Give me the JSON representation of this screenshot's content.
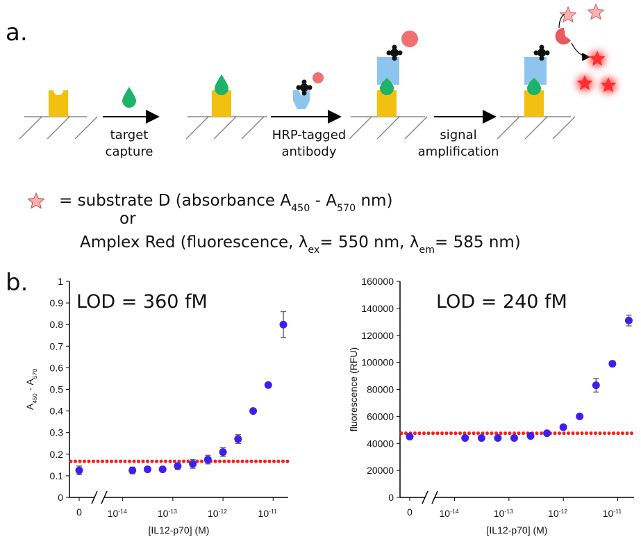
{
  "diagram": {
    "panel_a": "a.",
    "steps": [
      [
        "target",
        "capture"
      ],
      [
        "HRP-tagged",
        "antibody"
      ],
      [
        "signal",
        "amplification"
      ]
    ],
    "legend": [
      [
        "= substrate D (absorbance A",
        "450",
        " - A",
        "570",
        " nm)"
      ],
      [
        "or"
      ],
      [
        "Amplex Red  (fluorescence, λ",
        "ex",
        "= 550 nm, λ",
        "em",
        "= 585 nm)"
      ]
    ],
    "panel_b": "b."
  },
  "chart_data": [
    {
      "type": "scatter",
      "annotation": "LOD = 360 fM",
      "xlabel": "[IL12-p70] (M)",
      "ylabel": [
        "A",
        "450",
        " - A",
        "570"
      ],
      "log_x": true,
      "x": [
        0,
        1.56e-14,
        3.13e-14,
        6.25e-14,
        1.25e-13,
        2.5e-13,
        5e-13,
        1e-12,
        2e-12,
        4e-12,
        8e-12,
        1.6e-11
      ],
      "series": [
        {
          "color": "#3d1ff0",
          "error_color": "#666666",
          "values": [
            0.125,
            0.125,
            0.13,
            0.13,
            0.145,
            0.155,
            0.175,
            0.21,
            0.27,
            0.4,
            0.52,
            0.8
          ],
          "errors": [
            0.02,
            0.015,
            0.01,
            0.01,
            0.015,
            0.02,
            0.02,
            0.02,
            0.02,
            0.01,
            0.005,
            0.06
          ]
        }
      ],
      "threshold": 0.167,
      "threshold_color": "#ff1a1a",
      "xlim": [
        5e-15,
        2e-11
      ],
      "xticks": [
        0,
        {
          "value": 1e-14,
          "label": [
            "10",
            "-14"
          ]
        },
        {
          "value": 1e-13,
          "label": [
            "10",
            "-13"
          ]
        },
        {
          "value": 1e-12,
          "label": [
            "10",
            "-12"
          ]
        },
        {
          "value": 1e-11,
          "label": [
            "10",
            "-11"
          ]
        }
      ],
      "ylim": [
        0,
        1
      ],
      "yticks": [
        0,
        0.1,
        0.2,
        0.3,
        0.4,
        0.5,
        0.6,
        0.7,
        0.8,
        0.9,
        1
      ]
    },
    {
      "type": "scatter",
      "annotation": "LOD = 240 fM",
      "xlabel": "[IL12-p70] (M)",
      "ylabel": [
        "fluorescence (RFU)"
      ],
      "log_x": true,
      "x": [
        0,
        1.56e-14,
        3.13e-14,
        6.25e-14,
        1.25e-13,
        2.5e-13,
        5e-13,
        1e-12,
        2e-12,
        4e-12,
        8e-12,
        1.6e-11
      ],
      "series": [
        {
          "color": "#3d1ff0",
          "error_color": "#666666",
          "values": [
            45000,
            44000,
            44000,
            44000,
            44000,
            45500,
            47500,
            52000,
            60000,
            83000,
            99000,
            131000
          ],
          "errors": [
            1500,
            1000,
            1000,
            1000,
            1000,
            1000,
            800,
            1000,
            1000,
            5000,
            2000,
            4000
          ]
        }
      ],
      "threshold": 47500,
      "threshold_color": "#ff1a1a",
      "xlim": [
        5e-15,
        2e-11
      ],
      "xticks": [
        0,
        {
          "value": 1e-14,
          "label": [
            "10",
            "-14"
          ]
        },
        {
          "value": 1e-13,
          "label": [
            "10",
            "-13"
          ]
        },
        {
          "value": 1e-12,
          "label": [
            "10",
            "-12"
          ]
        },
        {
          "value": 1e-11,
          "label": [
            "10",
            "-11"
          ]
        }
      ],
      "ylim": [
        0,
        160000
      ],
      "yticks": [
        0,
        20000,
        40000,
        60000,
        80000,
        100000,
        120000,
        140000,
        160000
      ]
    }
  ]
}
